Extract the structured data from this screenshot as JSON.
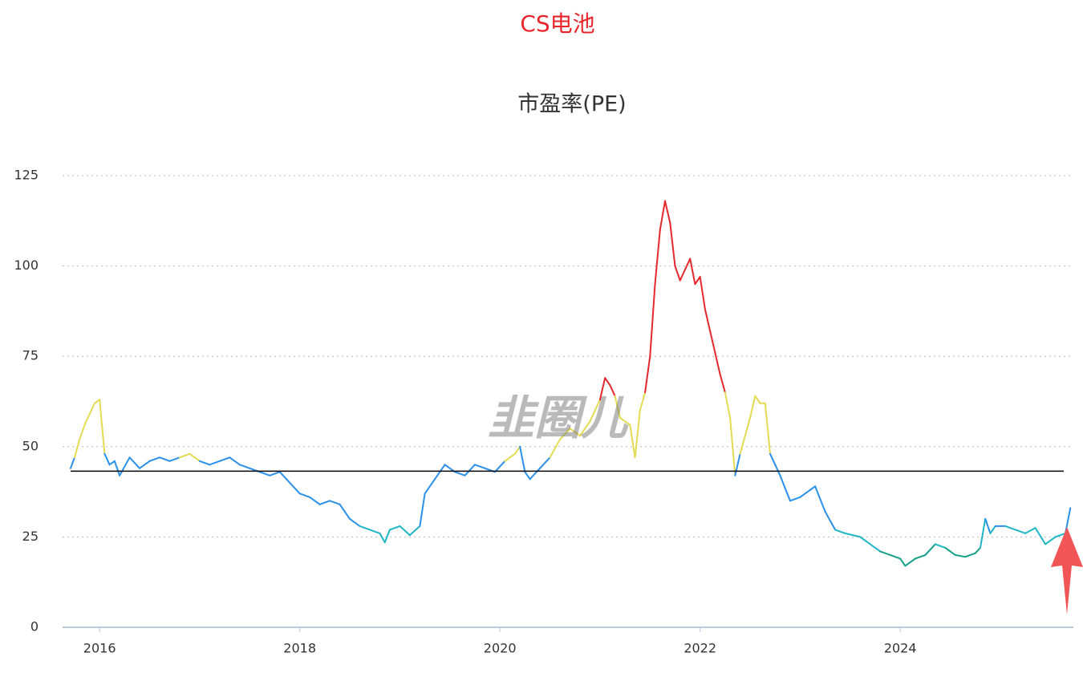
{
  "chart_data": {
    "type": "line",
    "title": "CS电池",
    "subtitle": "市盈率(PE)",
    "watermark": "韭圈儿",
    "x": [
      2015.71,
      2015.75,
      2015.8,
      2015.85,
      2015.9,
      2015.95,
      2016.0,
      2016.05,
      2016.1,
      2016.15,
      2016.2,
      2016.3,
      2016.4,
      2016.5,
      2016.6,
      2016.7,
      2016.8,
      2016.9,
      2017.0,
      2017.1,
      2017.2,
      2017.3,
      2017.4,
      2017.5,
      2017.6,
      2017.7,
      2017.8,
      2017.9,
      2018.0,
      2018.1,
      2018.2,
      2018.3,
      2018.4,
      2018.5,
      2018.6,
      2018.7,
      2018.8,
      2018.85,
      2018.9,
      2019.0,
      2019.1,
      2019.2,
      2019.25,
      2019.35,
      2019.45,
      2019.55,
      2019.65,
      2019.75,
      2019.85,
      2019.95,
      2020.05,
      2020.15,
      2020.2,
      2020.25,
      2020.3,
      2020.4,
      2020.5,
      2020.6,
      2020.7,
      2020.8,
      2020.9,
      2021.0,
      2021.05,
      2021.1,
      2021.15,
      2021.2,
      2021.3,
      2021.35,
      2021.4,
      2021.45,
      2021.5,
      2021.55,
      2021.6,
      2021.65,
      2021.7,
      2021.75,
      2021.8,
      2021.9,
      2021.95,
      2022.0,
      2022.05,
      2022.1,
      2022.15,
      2022.2,
      2022.25,
      2022.3,
      2022.35,
      2022.4,
      2022.5,
      2022.55,
      2022.6,
      2022.65,
      2022.7,
      2022.75,
      2022.8,
      2022.9,
      2023.0,
      2023.1,
      2023.15,
      2023.25,
      2023.35,
      2023.45,
      2023.6,
      2023.7,
      2023.8,
      2023.9,
      2024.0,
      2024.05,
      2024.15,
      2024.25,
      2024.35,
      2024.45,
      2024.55,
      2024.65,
      2024.75,
      2024.8,
      2024.85,
      2024.9,
      2024.95,
      2025.05,
      2025.15,
      2025.25,
      2025.35,
      2025.45,
      2025.55,
      2025.65,
      2025.7
    ],
    "values": [
      44,
      47,
      52,
      56,
      59,
      62,
      63,
      48,
      45,
      46,
      42,
      47,
      44,
      46,
      47,
      46,
      47,
      48,
      46,
      45,
      46,
      47,
      45,
      44,
      43,
      42,
      43,
      40,
      37,
      36,
      34,
      35,
      34,
      30,
      28,
      27,
      26,
      23.5,
      27,
      28,
      25.5,
      28,
      37,
      41,
      45,
      43,
      42,
      45,
      44,
      43,
      46,
      48,
      50,
      43,
      41,
      44,
      47,
      52,
      55,
      53,
      57,
      63,
      69,
      67,
      64,
      58,
      56,
      47,
      60,
      65,
      75,
      95,
      110,
      118,
      112,
      100,
      96,
      102,
      95,
      97,
      88,
      82,
      76,
      70,
      65,
      58,
      42,
      48,
      58,
      64,
      62,
      62,
      48,
      45,
      42,
      35,
      36,
      38,
      39,
      32,
      27,
      26,
      25,
      23,
      21,
      20,
      19,
      17,
      19,
      20,
      23,
      22,
      20,
      19.5,
      20.5,
      22,
      30,
      26,
      28,
      28,
      27,
      26,
      27.5,
      23,
      25,
      26,
      33
    ],
    "visual_map": [
      {
        "min": 65,
        "color": "#e5282d"
      },
      {
        "min": 47,
        "max": 65,
        "color": "#e2dc53"
      },
      {
        "min": 28,
        "max": 47,
        "color": "#2a90ea"
      },
      {
        "min": 22,
        "max": 28,
        "color": "#1fb6c6"
      },
      {
        "max": 22,
        "color": "#14a08a"
      }
    ],
    "reference_line": 43.2,
    "reference_color": "#000000",
    "xlim": [
      2015.63,
      2025.73
    ],
    "xticks": [
      2016,
      2018,
      2020,
      2022,
      2024
    ],
    "ylim": [
      0,
      125
    ],
    "yticks": [
      0,
      25,
      50,
      75,
      100,
      125
    ],
    "grid": true
  }
}
